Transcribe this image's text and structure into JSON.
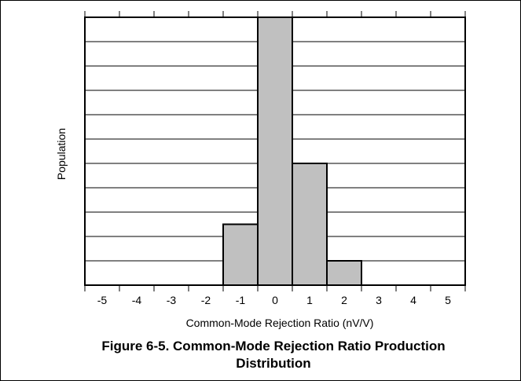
{
  "chart_data": {
    "type": "bar",
    "title": "",
    "xlabel": "Common-Mode Rejection Ratio (nV/V)",
    "ylabel": "Population",
    "x_ticks": [
      "-5",
      "-4",
      "-3",
      "-2",
      "-1",
      "0",
      "1",
      "2",
      "3",
      "4",
      "5"
    ],
    "categories": [
      "-1",
      "0",
      "1",
      "2"
    ],
    "values": [
      2.5,
      11,
      5,
      1
    ],
    "xlim": [
      -5,
      5
    ],
    "ylim": [
      0,
      11
    ],
    "grid": true,
    "bar_color": "#c0c0c0"
  },
  "caption": {
    "line1": "Figure 6-5. Common-Mode Rejection Ratio Production",
    "line2": "Distribution"
  }
}
